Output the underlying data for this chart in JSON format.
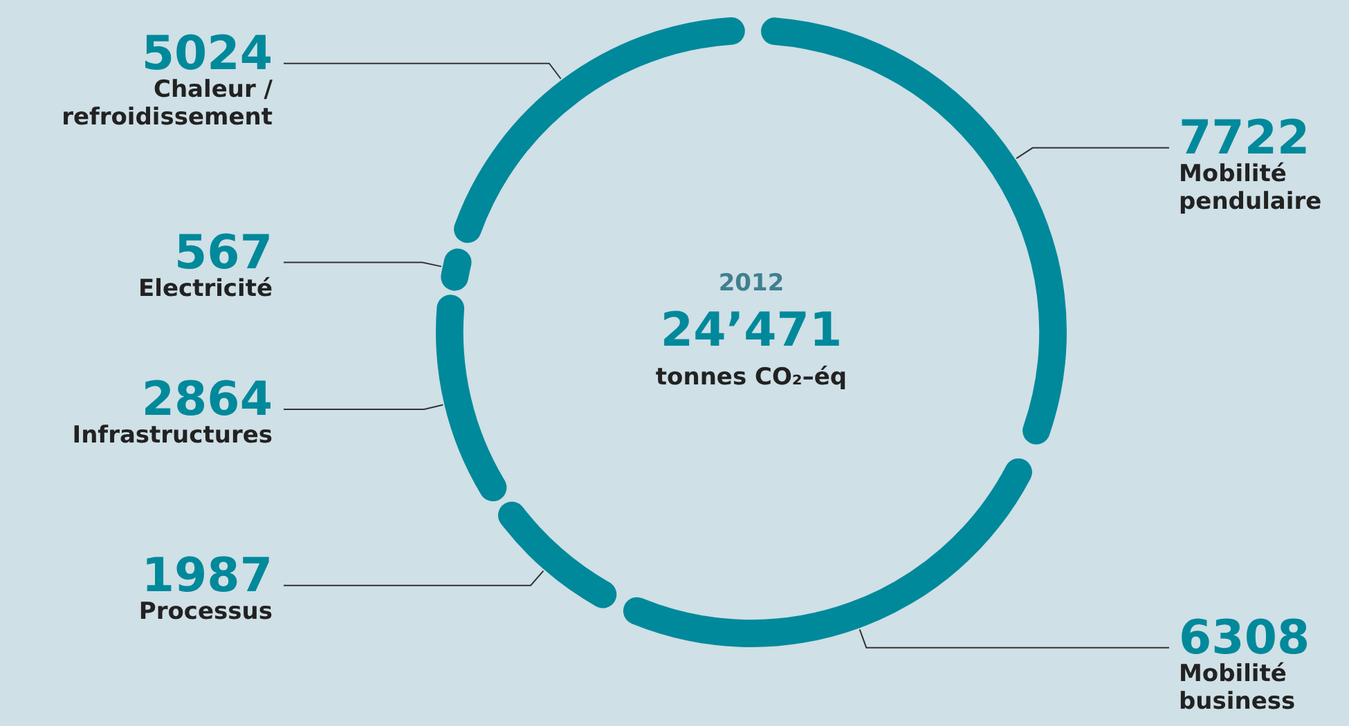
{
  "chart_data": {
    "type": "donut",
    "categories": [
      "Mobilité pendulaire",
      "Mobilité business",
      "Processus",
      "Infrastructures",
      "Electricité",
      "Chaleur / refroidissement"
    ],
    "values": [
      7722,
      6308,
      1987,
      2864,
      567,
      5024
    ],
    "colors": [
      "#00899b",
      "#00899b",
      "#00899b",
      "#00899b",
      "#00899b",
      "#00899b"
    ],
    "data_labels": true,
    "annotations": [
      "2012",
      "24’471",
      "tonnes CO₂–éq"
    ],
    "legend": false
  }
}
